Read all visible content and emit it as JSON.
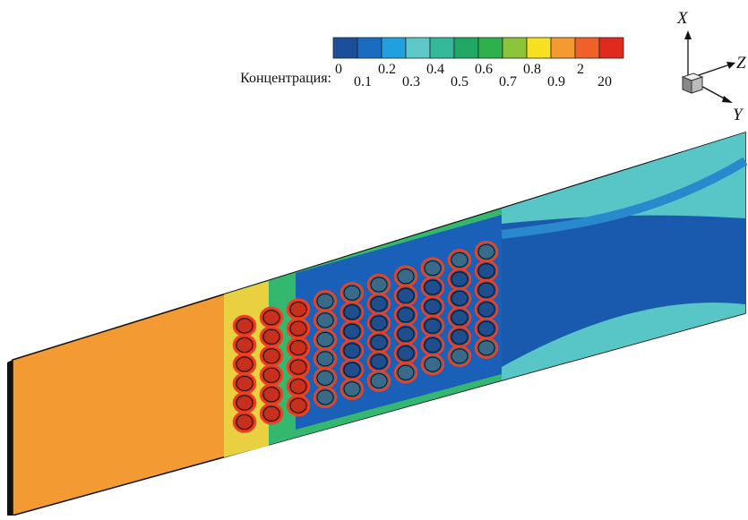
{
  "legend": {
    "label": "Концентрация:",
    "levels": [
      "0",
      "0.1",
      "0.2",
      "0.3",
      "0.4",
      "0.5",
      "0.6",
      "0.7",
      "0.8",
      "0.9",
      "2",
      "20"
    ],
    "colors": [
      "#1b4f9c",
      "#1a6cc0",
      "#20a0dc",
      "#5ec8c8",
      "#34b89a",
      "#22a864",
      "#2eb04a",
      "#8cc43c",
      "#f6e020",
      "#f49a30",
      "#f06028",
      "#e02a1e"
    ]
  },
  "axes": {
    "x": "X",
    "y": "Y",
    "z": "Z"
  }
}
